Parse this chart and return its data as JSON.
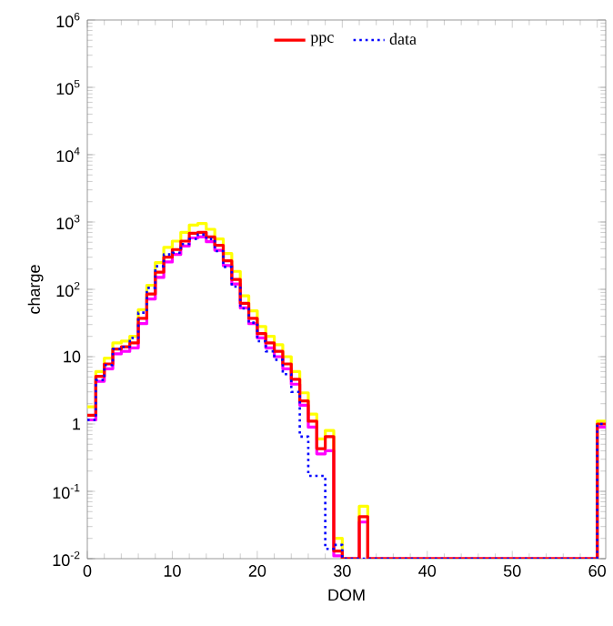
{
  "chart_data": {
    "type": "histogram",
    "xlabel": "DOM",
    "ylabel": "charge",
    "log": true,
    "legend": "top",
    "bins": [
      0,
      1,
      2,
      3,
      4,
      5,
      6,
      7,
      8,
      9,
      10,
      11,
      12,
      13,
      14,
      15,
      16,
      17,
      18,
      19,
      20,
      21,
      22,
      23,
      24,
      25,
      26,
      27,
      28,
      29,
      30,
      31,
      32,
      33,
      34,
      35,
      36,
      37,
      38,
      39,
      40,
      41,
      42,
      43,
      44,
      45,
      46,
      47,
      48,
      49,
      50,
      51,
      52,
      53,
      54,
      55,
      56,
      57,
      58,
      59,
      60,
      61
    ],
    "xlim": [
      0,
      61
    ],
    "xticks": [
      0,
      10,
      20,
      30,
      40,
      50,
      60
    ],
    "ylim": [
      0.01,
      1000000
    ],
    "yticks": [
      {
        "value": 0.01,
        "label": "10$^{-2}$"
      },
      {
        "value": 0.1,
        "label": "10$^{-1}$"
      },
      1,
      10,
      {
        "value": 100,
        "label": "10$^{2}$"
      },
      {
        "value": 1000,
        "label": "10$^{3}$"
      },
      {
        "value": 10000,
        "label": "10$^{4}$"
      },
      {
        "value": 100000,
        "label": "10$^{5}$"
      },
      {
        "value": 1000000,
        "label": "10$^{6}$"
      }
    ],
    "series": [
      {
        "color": "#ffff00",
        "line_style": "solid",
        "values": [
          1.8,
          6,
          9.5,
          16,
          17,
          20,
          50,
          115,
          250,
          420,
          520,
          700,
          900,
          950,
          780,
          560,
          340,
          185,
          80,
          48,
          28,
          20,
          15,
          10,
          6,
          2.9,
          1.4,
          0.6,
          0.8,
          0.02,
          null,
          null,
          0.06,
          null,
          null,
          null,
          null,
          null,
          null,
          null,
          null,
          null,
          null,
          null,
          null,
          null,
          null,
          null,
          null,
          null,
          null,
          null,
          null,
          null,
          null,
          null,
          null,
          null,
          null,
          null,
          1.1
        ]
      },
      {
        "color": "#ff00ff",
        "line_style": "solid",
        "values": [
          1.15,
          4.3,
          6.6,
          11,
          12,
          13.5,
          31,
          72,
          150,
          255,
          330,
          440,
          580,
          600,
          510,
          380,
          225,
          120,
          53,
          31,
          19,
          13.5,
          10,
          6.6,
          3.9,
          1.9,
          0.9,
          0.36,
          0.4,
          0.011,
          null,
          null,
          0.035,
          null,
          null,
          null,
          null,
          null,
          null,
          null,
          null,
          null,
          null,
          null,
          null,
          null,
          null,
          null,
          null,
          null,
          null,
          null,
          null,
          null,
          null,
          null,
          null,
          null,
          null,
          null,
          0.9
        ]
      },
      {
        "name": "ppc",
        "color": "#ff0000",
        "line_style": "solid",
        "values": [
          1.35,
          5.1,
          7.8,
          13,
          14,
          16,
          37,
          85,
          180,
          300,
          390,
          520,
          680,
          700,
          600,
          450,
          265,
          140,
          62,
          37,
          22,
          16,
          12,
          7.8,
          4.6,
          2.2,
          1.1,
          0.43,
          0.65,
          0.013,
          null,
          null,
          0.042,
          null,
          null,
          null,
          null,
          null,
          null,
          null,
          null,
          null,
          null,
          null,
          null,
          null,
          null,
          null,
          null,
          null,
          null,
          null,
          null,
          null,
          null,
          null,
          null,
          null,
          null,
          null,
          1.0
        ]
      },
      {
        "name": "data",
        "color": "#0000ff",
        "line_style": "dotted",
        "values": [
          1.15,
          4.5,
          7.5,
          13,
          14,
          19,
          45,
          105,
          220,
          330,
          350,
          470,
          560,
          650,
          560,
          370,
          215,
          110,
          52,
          32,
          17,
          12,
          9,
          5.5,
          3,
          0.65,
          0.17,
          0.17,
          0.014,
          0.016,
          null,
          null,
          null,
          null,
          null,
          null,
          null,
          null,
          null,
          null,
          null,
          null,
          null,
          null,
          null,
          null,
          null,
          null,
          null,
          null,
          null,
          null,
          null,
          null,
          null,
          null,
          null,
          null,
          null,
          null,
          1.0
        ]
      }
    ]
  }
}
